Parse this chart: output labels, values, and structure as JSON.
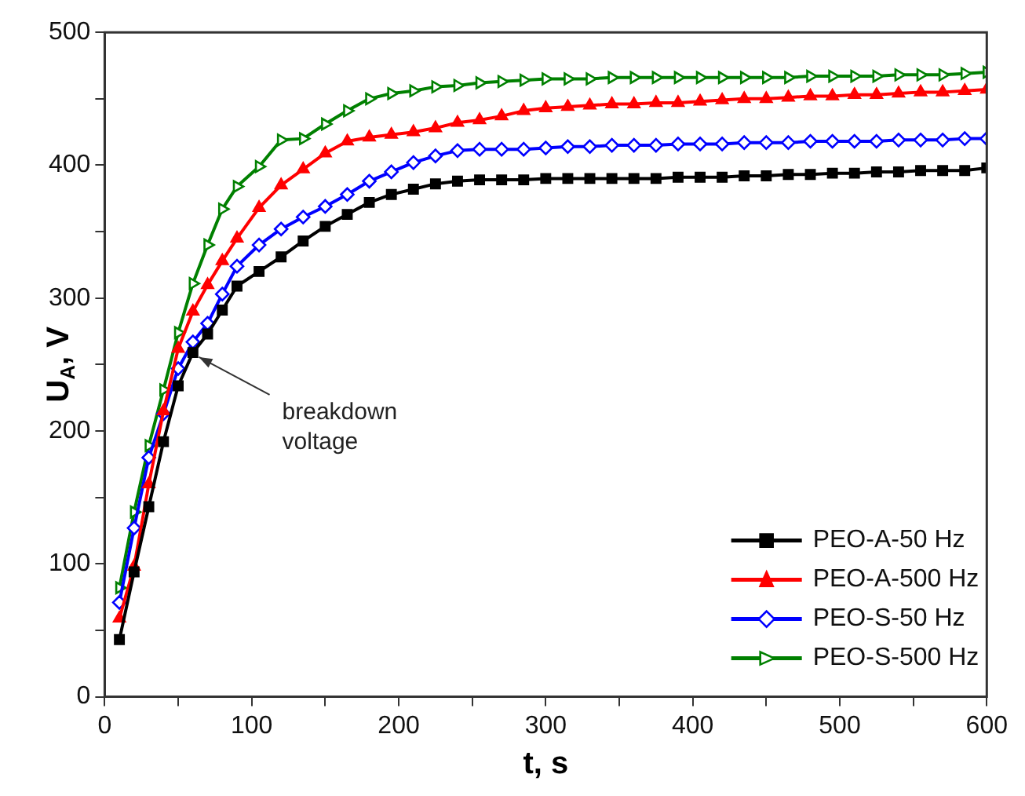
{
  "chart_data": {
    "type": "line",
    "xlabel": "t, s",
    "ylabel": "U$_{A}$, V",
    "x": [
      10,
      20,
      30,
      40,
      50,
      60,
      70,
      80,
      90,
      105,
      120,
      135,
      150,
      165,
      180,
      195,
      210,
      225,
      240,
      255,
      270,
      285,
      300,
      315,
      330,
      345,
      360,
      375,
      390,
      405,
      420,
      435,
      450,
      465,
      480,
      495,
      510,
      525,
      540,
      555,
      570,
      585,
      600
    ],
    "series": [
      {
        "name": "PEO-A-50 Hz",
        "color": "#000000",
        "marker": "square",
        "values": [
          43,
          94,
          143,
          192,
          234,
          259,
          273,
          291,
          309,
          320,
          331,
          343,
          354,
          363,
          372,
          378,
          382,
          386,
          388,
          389,
          389,
          389,
          390,
          390,
          390,
          390,
          390,
          390,
          391,
          391,
          391,
          392,
          392,
          393,
          393,
          394,
          394,
          395,
          395,
          396,
          396,
          396,
          398
        ]
      },
      {
        "name": "PEO-A-500 Hz",
        "color": "#ff0000",
        "marker": "triangle",
        "values": [
          59,
          98,
          160,
          215,
          262,
          290,
          310,
          328,
          345,
          368,
          385,
          397,
          409,
          418,
          421,
          423,
          425,
          428,
          432,
          434,
          437,
          441,
          443,
          444,
          445,
          446,
          446,
          447,
          447,
          448,
          449,
          450,
          450,
          451,
          452,
          452,
          453,
          453,
          454,
          455,
          455,
          456,
          457
        ]
      },
      {
        "name": "PEO-S-50 Hz",
        "color": "#0000ff",
        "marker": "diamond",
        "values": [
          71,
          127,
          180,
          213,
          247,
          267,
          281,
          303,
          324,
          340,
          352,
          361,
          369,
          378,
          388,
          395,
          402,
          407,
          411,
          412,
          412,
          412,
          413,
          414,
          414,
          415,
          415,
          415,
          416,
          416,
          416,
          417,
          417,
          417,
          418,
          418,
          418,
          418,
          419,
          419,
          419,
          420,
          420
        ]
      },
      {
        "name": "PEO-S-500 Hz",
        "color": "#008000",
        "marker": "triangle-right",
        "values": [
          82,
          139,
          189,
          231,
          274,
          311,
          340,
          367,
          384,
          399,
          419,
          420,
          431,
          441,
          450,
          454,
          456,
          459,
          460,
          462,
          463,
          464,
          465,
          465,
          465,
          466,
          466,
          466,
          466,
          466,
          466,
          466,
          466,
          466,
          467,
          467,
          467,
          467,
          468,
          468,
          468,
          469,
          470
        ]
      }
    ],
    "xlim": [
      0,
      600
    ],
    "xticks": [
      0,
      {
        "value": 50,
        "label": null
      },
      100,
      {
        "value": 150,
        "label": null
      },
      200,
      {
        "value": 250,
        "label": null
      },
      300,
      {
        "value": 350,
        "label": null
      },
      400,
      {
        "value": 450,
        "label": null
      },
      500,
      {
        "value": 550,
        "label": null
      },
      600
    ],
    "ylim": [
      0,
      500
    ],
    "yticks": [
      0,
      {
        "value": 50,
        "label": null
      },
      100,
      {
        "value": 150,
        "label": null
      },
      200,
      {
        "value": 250,
        "label": null
      },
      300,
      {
        "value": 350,
        "label": null
      },
      400,
      {
        "value": 450,
        "label": null
      },
      500
    ],
    "grid": false,
    "legend": "bottom right",
    "line_style": "solid",
    "annotations": [
      {
        "text": "breakdown voltage",
        "x": 62,
        "y": 258
      }
    ]
  }
}
